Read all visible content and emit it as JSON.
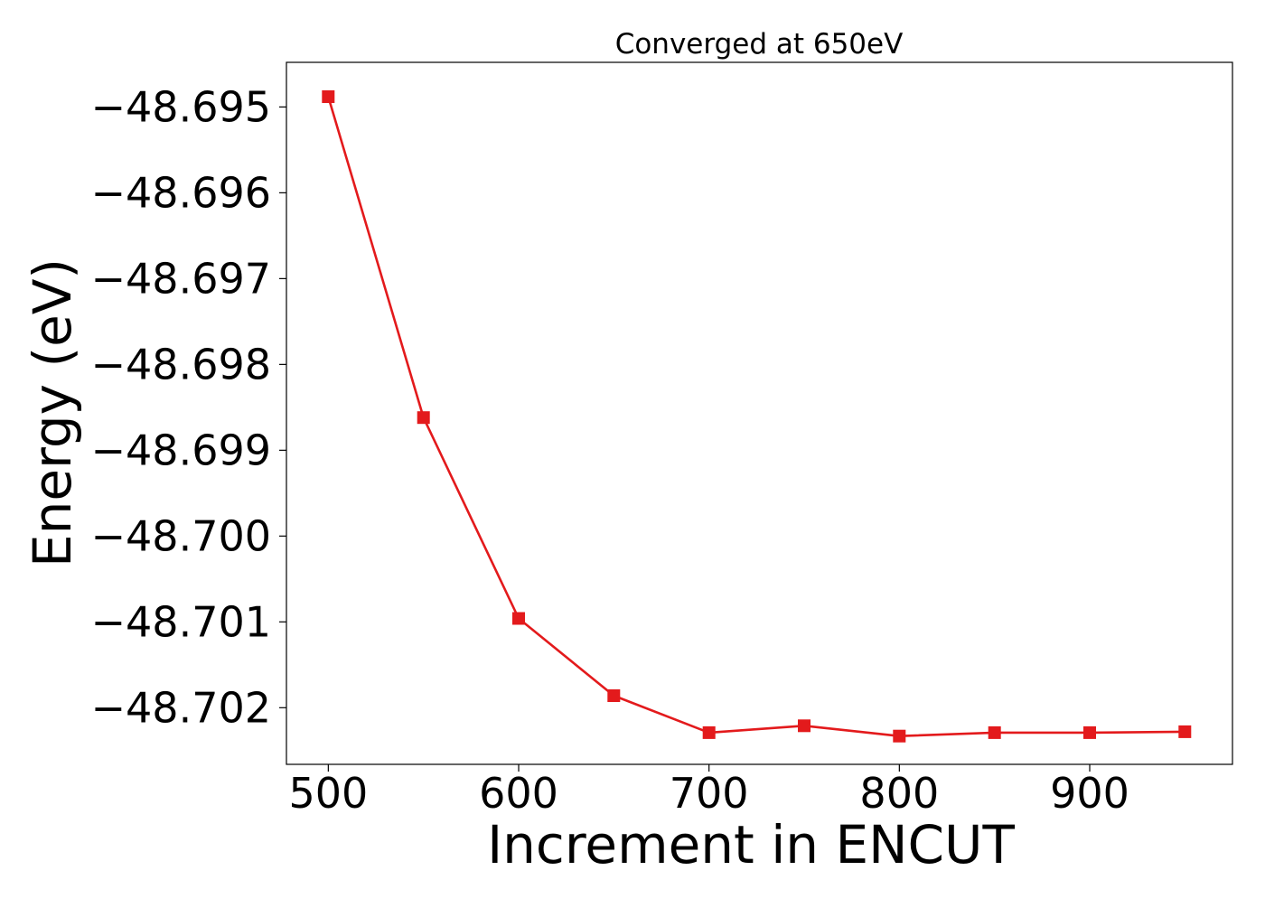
{
  "chart_data": {
    "type": "line",
    "title": "Converged at 650eV",
    "xlabel": "Increment in ENCUT",
    "ylabel": "Energy (eV)",
    "xlim": [
      478,
      975
    ],
    "ylim": [
      -48.70266,
      -48.69448
    ],
    "xticks": [
      {
        "value": 500,
        "label": "500"
      },
      {
        "value": 600,
        "label": "600"
      },
      {
        "value": 700,
        "label": "700"
      },
      {
        "value": 800,
        "label": "800"
      },
      {
        "value": 900,
        "label": "900"
      }
    ],
    "yticks": [
      {
        "value": -48.695,
        "label": "−48.695"
      },
      {
        "value": -48.696,
        "label": "−48.696"
      },
      {
        "value": -48.697,
        "label": "−48.697"
      },
      {
        "value": -48.698,
        "label": "−48.698"
      },
      {
        "value": -48.699,
        "label": "−48.699"
      },
      {
        "value": -48.7,
        "label": "−48.700"
      },
      {
        "value": -48.701,
        "label": "−48.701"
      },
      {
        "value": -48.702,
        "label": "−48.702"
      }
    ],
    "grid": false,
    "series": [
      {
        "color": "#e31a1c",
        "marker": "square",
        "x": [
          500,
          550,
          600,
          650,
          700,
          750,
          800,
          850,
          900,
          950
        ],
        "y": [
          -48.69488,
          -48.69862,
          -48.70096,
          -48.70186,
          -48.70229,
          -48.70221,
          -48.70233,
          -48.70229,
          -48.70229,
          -48.70228
        ]
      }
    ]
  }
}
